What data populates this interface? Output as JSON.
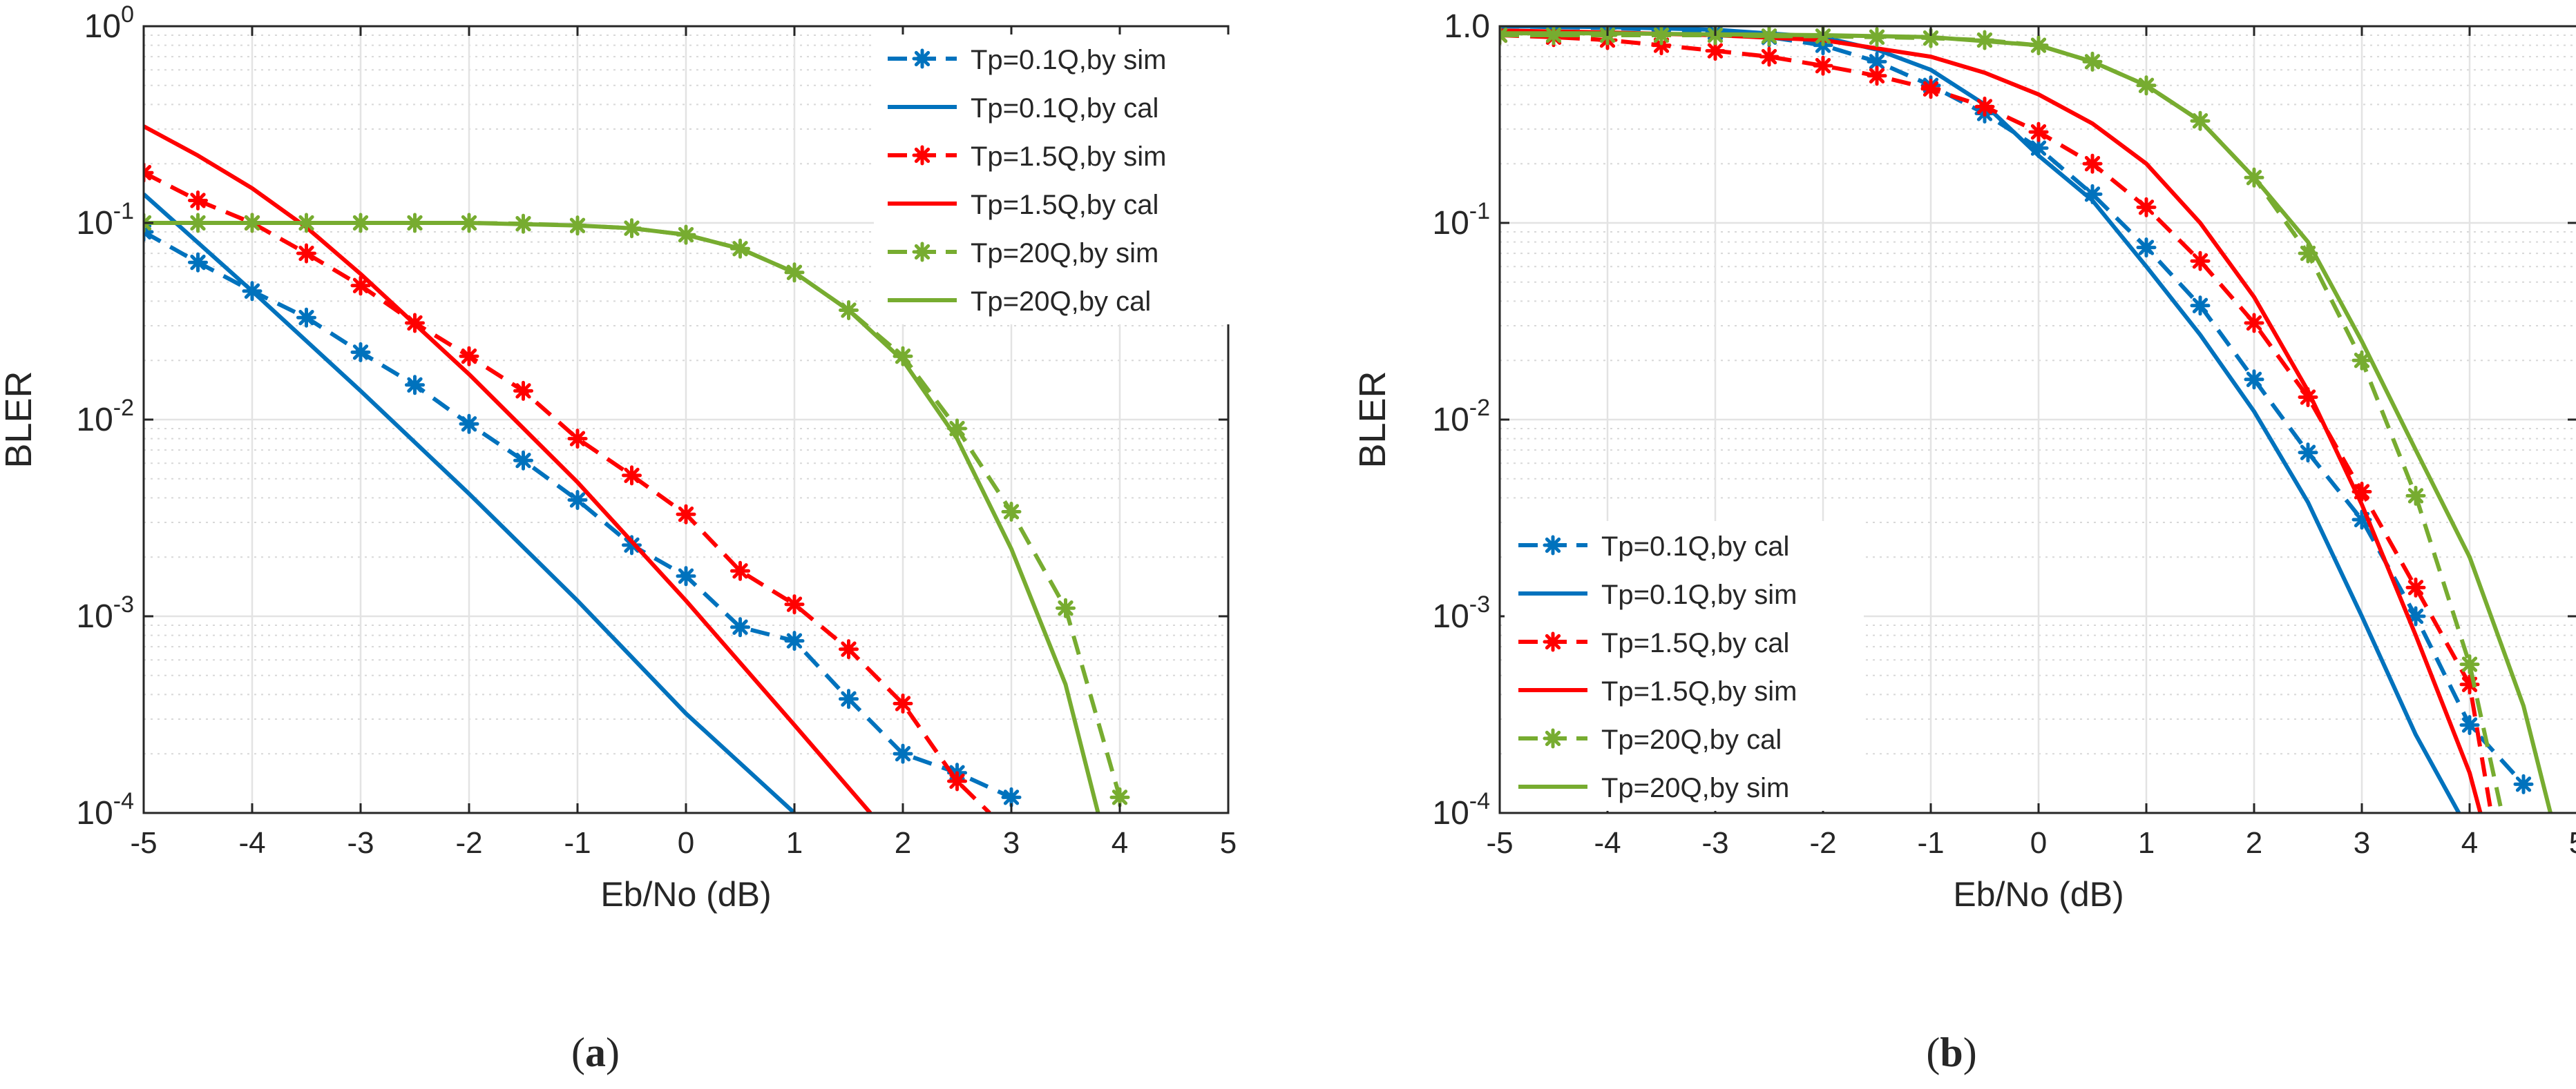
{
  "chart_data": [
    {
      "type": "line",
      "panel_label": "(a)",
      "xlabel": "Eb/No (dB)",
      "ylabel": "BLER",
      "xlim": [
        -5,
        5
      ],
      "ylim": [
        0.0001,
        1
      ],
      "yscale": "log",
      "grid": true,
      "legend_location": "top-right",
      "xticks": [
        "-5",
        "-4",
        "-3",
        "-2",
        "-1",
        "0",
        "1",
        "2",
        "3",
        "4",
        "5"
      ],
      "yticks": [
        {
          "base": "10",
          "exp": "0"
        },
        {
          "base": "10",
          "exp": "-1"
        },
        {
          "base": "10",
          "exp": "-2"
        },
        {
          "base": "10",
          "exp": "-3"
        },
        {
          "base": "10",
          "exp": "-4"
        }
      ],
      "series": [
        {
          "name": "Tp=0.1Q,by sim",
          "color": "#0072BD",
          "style": "dashed",
          "marker": "asterisk",
          "x": [
            -5,
            -4.5,
            -4,
            -3.5,
            -3,
            -2.5,
            -2,
            -1.5,
            -1,
            -0.5,
            0,
            0.5,
            1,
            1.5,
            2,
            2.5,
            3
          ],
          "y": [
            0.09,
            0.063,
            0.045,
            0.033,
            0.022,
            0.015,
            0.0095,
            0.0062,
            0.0039,
            0.0023,
            0.0016,
            0.00088,
            0.00075,
            0.00038,
            0.0002,
            0.00016,
            0.00012
          ]
        },
        {
          "name": "Tp=0.1Q,by cal",
          "color": "#0072BD",
          "style": "solid",
          "marker": "none",
          "x": [
            -5,
            -4,
            -3,
            -2,
            -1,
            0,
            1
          ],
          "y": [
            0.14,
            0.045,
            0.014,
            0.0042,
            0.0012,
            0.00032,
            0.0001
          ]
        },
        {
          "name": "Tp=1.5Q,by sim",
          "color": "#FF0000",
          "style": "dashed",
          "marker": "asterisk",
          "x": [
            -5,
            -4.5,
            -4,
            -3.5,
            -3,
            -2.5,
            -2,
            -1.5,
            -1,
            -0.5,
            0,
            0.5,
            1,
            1.5,
            2,
            2.5,
            2.8
          ],
          "y": [
            0.18,
            0.13,
            0.1,
            0.07,
            0.048,
            0.031,
            0.021,
            0.014,
            0.008,
            0.0052,
            0.0033,
            0.0017,
            0.00115,
            0.00068,
            0.00036,
            0.000145,
            0.0001
          ]
        },
        {
          "name": "Tp=1.5Q,by cal",
          "color": "#FF0000",
          "style": "solid",
          "marker": "none",
          "x": [
            -5,
            -4.5,
            -4,
            -3.5,
            -3,
            -2,
            -1,
            0,
            1,
            1.7
          ],
          "y": [
            0.31,
            0.22,
            0.15,
            0.095,
            0.055,
            0.017,
            0.0048,
            0.0012,
            0.00028,
            0.0001
          ]
        },
        {
          "name": "Tp=20Q,by sim",
          "color": "#77AC30",
          "style": "dashed",
          "marker": "asterisk",
          "x": [
            -5,
            -4.5,
            -4,
            -3.5,
            -3,
            -2.5,
            -2,
            -1.5,
            -1,
            -0.5,
            0,
            0.5,
            1,
            1.5,
            2,
            2.5,
            3,
            3.5,
            4
          ],
          "y": [
            0.1,
            0.1,
            0.1,
            0.1,
            0.1,
            0.1,
            0.1,
            0.099,
            0.097,
            0.094,
            0.087,
            0.074,
            0.056,
            0.036,
            0.021,
            0.009,
            0.0034,
            0.0011,
            0.00012
          ]
        },
        {
          "name": "Tp=20Q,by cal",
          "color": "#77AC30",
          "style": "solid",
          "marker": "none",
          "x": [
            -5,
            -4,
            -3,
            -2,
            -1,
            -0.5,
            0,
            0.5,
            1,
            1.5,
            2,
            2.5,
            3,
            3.5,
            3.8
          ],
          "y": [
            0.1,
            0.1,
            0.1,
            0.1,
            0.097,
            0.094,
            0.087,
            0.074,
            0.056,
            0.036,
            0.02,
            0.008,
            0.0022,
            0.00045,
            0.0001
          ]
        }
      ]
    },
    {
      "type": "line",
      "panel_label": "(b)",
      "xlabel": "Eb/No (dB)",
      "ylabel": "BLER",
      "xlim": [
        -5,
        5
      ],
      "ylim": [
        0.0001,
        1
      ],
      "yscale": "log",
      "grid": true,
      "legend_location": "bottom-left",
      "xticks": [
        "-5",
        "-4",
        "-3",
        "-2",
        "-1",
        "0",
        "1",
        "2",
        "3",
        "4",
        "5"
      ],
      "yticks": [
        {
          "base": "1.0",
          "exp": ""
        },
        {
          "base": "10",
          "exp": "-1"
        },
        {
          "base": "10",
          "exp": "-2"
        },
        {
          "base": "10",
          "exp": "-3"
        },
        {
          "base": "10",
          "exp": "-4"
        }
      ],
      "series": [
        {
          "name": "Tp=0.1Q,by cal",
          "color": "#0072BD",
          "style": "dashed",
          "marker": "asterisk",
          "x": [
            -5,
            -4.5,
            -4,
            -3.5,
            -3,
            -2.5,
            -2,
            -1.5,
            -1,
            -0.5,
            0,
            0.5,
            1,
            1.5,
            2,
            2.5,
            3,
            3.5,
            4,
            4.5
          ],
          "y": [
            1.0,
            0.99,
            0.98,
            0.96,
            0.93,
            0.88,
            0.8,
            0.66,
            0.5,
            0.36,
            0.24,
            0.14,
            0.075,
            0.038,
            0.016,
            0.0068,
            0.0031,
            0.001,
            0.00028,
            0.00014
          ]
        },
        {
          "name": "Tp=0.1Q,by sim",
          "color": "#0072BD",
          "style": "solid",
          "marker": "none",
          "x": [
            -5,
            -4,
            -3,
            -2,
            -1.5,
            -1,
            -0.5,
            0,
            0.5,
            1,
            1.5,
            2,
            2.5,
            3,
            3.5,
            3.9
          ],
          "y": [
            1.0,
            0.99,
            0.96,
            0.88,
            0.76,
            0.6,
            0.4,
            0.22,
            0.13,
            0.06,
            0.027,
            0.011,
            0.0038,
            0.001,
            0.00025,
            0.0001
          ]
        },
        {
          "name": "Tp=1.5Q,by cal",
          "color": "#FF0000",
          "style": "dashed",
          "marker": "asterisk",
          "x": [
            -5,
            -4.5,
            -4,
            -3.5,
            -3,
            -2.5,
            -2,
            -1.5,
            -1,
            -0.5,
            0,
            0.5,
            1,
            1.5,
            2,
            2.5,
            3,
            3.5,
            4,
            4.2
          ],
          "y": [
            0.9,
            0.88,
            0.85,
            0.8,
            0.75,
            0.7,
            0.63,
            0.56,
            0.48,
            0.39,
            0.29,
            0.2,
            0.12,
            0.064,
            0.031,
            0.013,
            0.0043,
            0.0014,
            0.00045,
            0.0001
          ]
        },
        {
          "name": "Tp=1.5Q,by sim",
          "color": "#FF0000",
          "style": "solid",
          "marker": "none",
          "x": [
            -5,
            -4,
            -3,
            -2,
            -1,
            -0.5,
            0,
            0.5,
            1,
            1.5,
            2,
            2.5,
            3,
            3.5,
            4,
            4.1
          ],
          "y": [
            0.95,
            0.93,
            0.9,
            0.85,
            0.7,
            0.58,
            0.45,
            0.32,
            0.2,
            0.1,
            0.042,
            0.014,
            0.0037,
            0.0008,
            0.00016,
            0.0001
          ]
        },
        {
          "name": "Tp=20Q,by cal",
          "color": "#77AC30",
          "style": "dashed",
          "marker": "asterisk",
          "x": [
            -5,
            -4.5,
            -4,
            -3.5,
            -3,
            -2.5,
            -2,
            -1.5,
            -1,
            -0.5,
            0,
            0.5,
            1,
            1.5,
            2,
            2.5,
            3,
            3.5,
            4,
            4.3
          ],
          "y": [
            0.9,
            0.9,
            0.9,
            0.9,
            0.9,
            0.89,
            0.89,
            0.88,
            0.87,
            0.85,
            0.8,
            0.66,
            0.5,
            0.33,
            0.17,
            0.07,
            0.02,
            0.0041,
            0.00057,
            0.0001
          ]
        },
        {
          "name": "Tp=20Q,by sim",
          "color": "#77AC30",
          "style": "solid",
          "marker": "none",
          "x": [
            -5,
            -4,
            -3,
            -2,
            -1,
            0,
            0.5,
            1,
            1.5,
            2,
            2.5,
            3,
            3.5,
            4,
            4.5,
            4.75
          ],
          "y": [
            0.92,
            0.92,
            0.91,
            0.9,
            0.88,
            0.8,
            0.66,
            0.5,
            0.33,
            0.17,
            0.08,
            0.025,
            0.007,
            0.002,
            0.00035,
            0.0001
          ]
        }
      ]
    }
  ]
}
